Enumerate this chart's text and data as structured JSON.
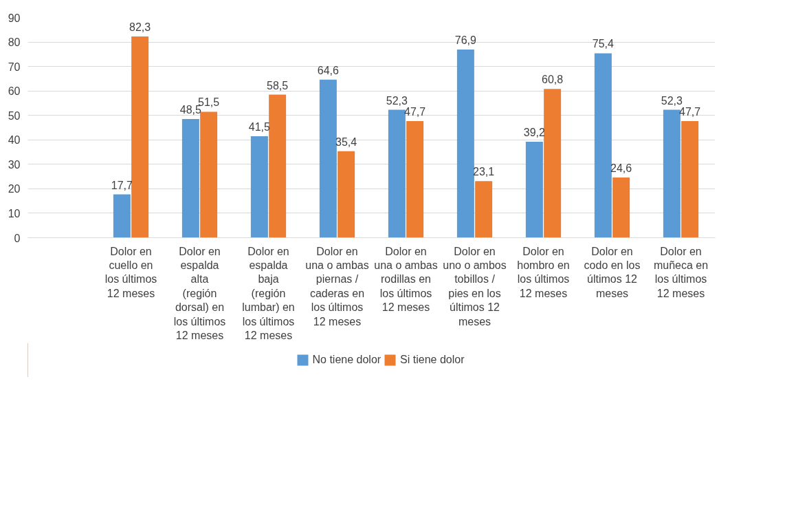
{
  "chart_data": {
    "type": "bar",
    "categories": [
      null,
      "Dolor en cuello en los últimos 12 meses",
      "Dolor en espalda alta (región dorsal) en los últimos 12 meses",
      "Dolor en espalda baja (región lumbar) en los últimos 12 meses",
      "Dolor en una o ambas piernas / caderas en los últimos 12 meses",
      "Dolor en una o ambas rodillas en los últimos 12 meses",
      "Dolor en uno o ambos tobillos / pies en los últimos 12 meses",
      "Dolor en hombro en los últimos 12 meses",
      "Dolor en codo en los últimos 12 meses",
      "Dolor en muñeca en los últimos 12 meses"
    ],
    "series": [
      {
        "name": "No tiene dolor",
        "color": "#5b9bd5",
        "values": [
          null,
          17.7,
          48.5,
          41.5,
          64.6,
          52.3,
          76.9,
          39.2,
          75.4,
          52.3
        ],
        "value_labels": [
          null,
          "17,7",
          "48,5",
          "41,5",
          "64,6",
          "52,3",
          "76,9",
          "39,2",
          "75,4",
          "52,3"
        ]
      },
      {
        "name": "Si tiene dolor",
        "color": "#ed7d31",
        "values": [
          null,
          82.3,
          51.5,
          58.5,
          35.4,
          47.7,
          23.1,
          60.8,
          24.6,
          47.7
        ],
        "value_labels": [
          null,
          "82,3",
          "51,5",
          "58,5",
          "35,4",
          "47,7",
          "23,1",
          "60,8",
          "24,6",
          "47,7"
        ]
      }
    ],
    "ylim": [
      0,
      90
    ],
    "yticks": [
      0,
      10,
      20,
      30,
      40,
      50,
      60,
      70,
      80,
      90
    ],
    "grid": "y",
    "legend": "bottom"
  }
}
